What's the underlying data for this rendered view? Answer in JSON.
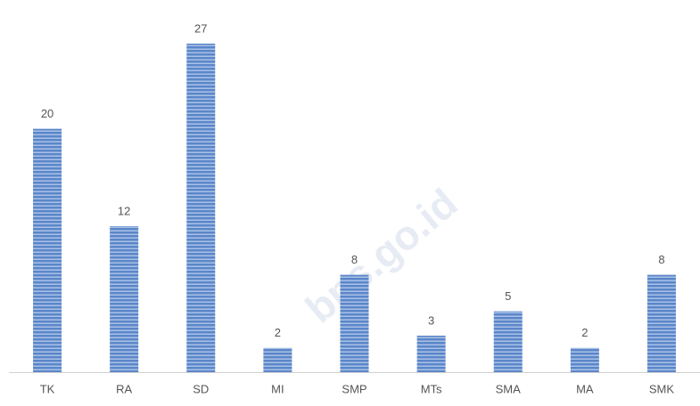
{
  "chart_data": {
    "type": "bar",
    "categories": [
      "TK",
      "RA",
      "SD",
      "MI",
      "SMP",
      "MTs",
      "SMA",
      "MA",
      "SMK"
    ],
    "values": [
      20,
      12,
      27,
      2,
      8,
      3,
      5,
      2,
      8
    ],
    "color": "#5b86c9",
    "watermark": "bps.go.id"
  }
}
